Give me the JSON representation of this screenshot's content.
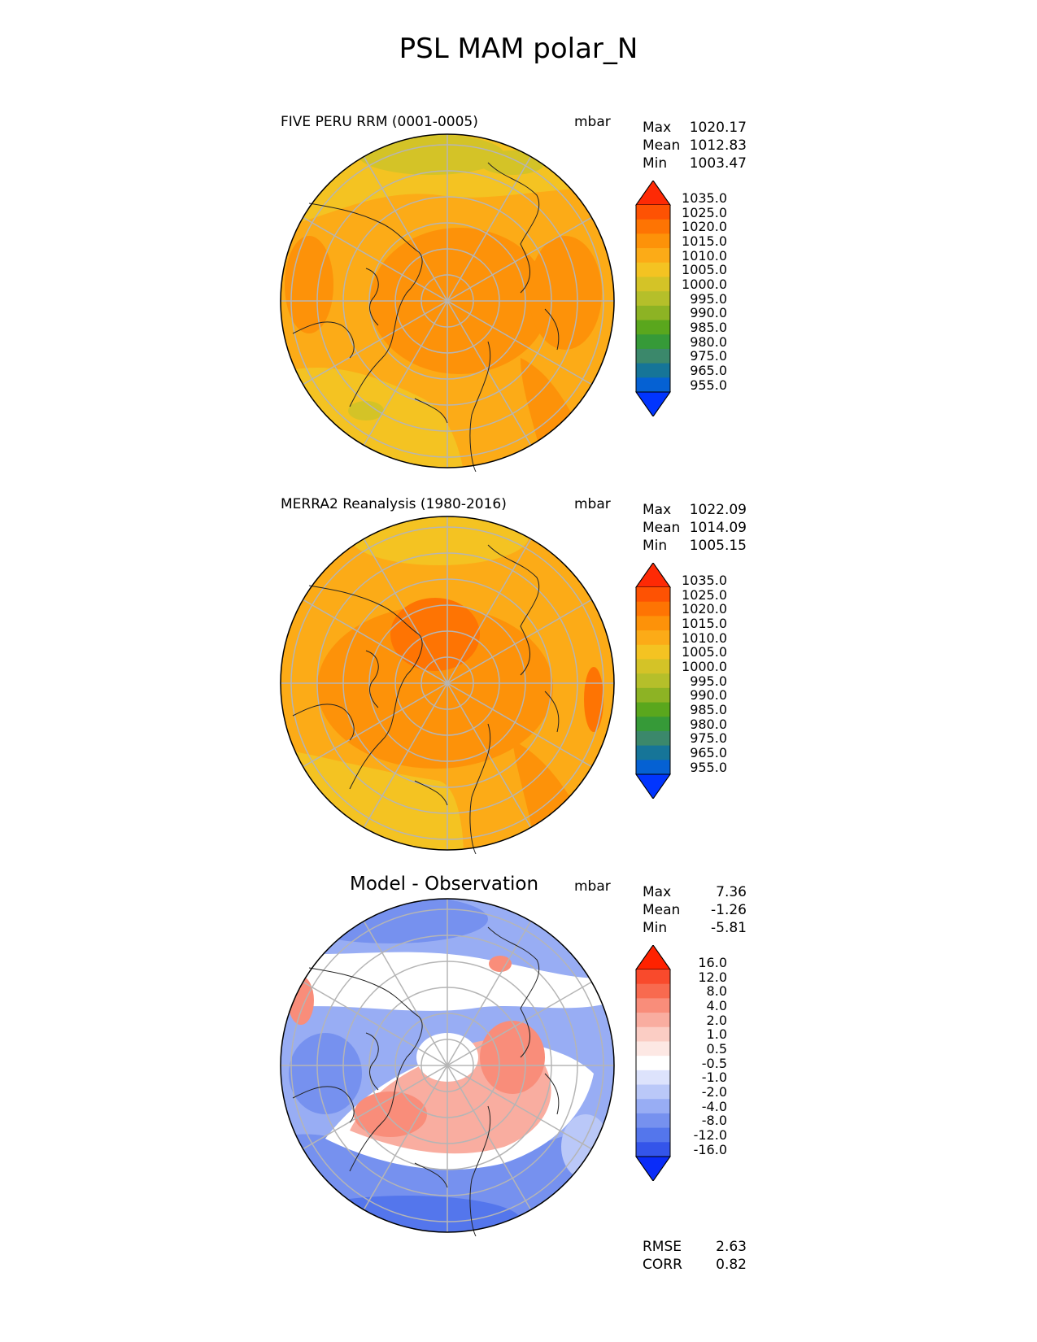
{
  "figure": {
    "title": "PSL MAM polar_N"
  },
  "chart_data": [
    {
      "type": "map",
      "projection": "north-polar-stereographic",
      "title": "FIVE PERU RRM (0001-0005)",
      "units": "mbar",
      "stats": {
        "max_label": "Max",
        "max": "1020.17",
        "mean_label": "Mean",
        "mean": "1012.83",
        "min_label": "Min",
        "min": "1003.47"
      },
      "colorbar_levels": [
        "1035.0",
        "1025.0",
        "1020.0",
        "1015.0",
        "1010.0",
        "1005.0",
        "1000.0",
        "995.0",
        "990.0",
        "985.0",
        "980.0",
        "975.0",
        "965.0",
        "955.0"
      ],
      "colors": [
        "#fe2a05",
        "#fe5203",
        "#fe7403",
        "#fd9209",
        "#fcab17",
        "#f4c322",
        "#d4c327",
        "#b5bf2a",
        "#8db324",
        "#5aa71d",
        "#369a38",
        "#3b886b",
        "#167598",
        "#0561d3",
        "#0135fe"
      ]
    },
    {
      "type": "map",
      "projection": "north-polar-stereographic",
      "title": "MERRA2 Reanalysis (1980-2016)",
      "units": "mbar",
      "stats": {
        "max_label": "Max",
        "max": "1022.09",
        "mean_label": "Mean",
        "mean": "1014.09",
        "min_label": "Min",
        "min": "1005.15"
      },
      "colorbar_levels": [
        "1035.0",
        "1025.0",
        "1020.0",
        "1015.0",
        "1010.0",
        "1005.0",
        "1000.0",
        "995.0",
        "990.0",
        "985.0",
        "980.0",
        "975.0",
        "965.0",
        "955.0"
      ],
      "colors": [
        "#fe2a05",
        "#fe5203",
        "#fe7403",
        "#fd9209",
        "#fcab17",
        "#f4c322",
        "#d4c327",
        "#b5bf2a",
        "#8db324",
        "#5aa71d",
        "#369a38",
        "#3b886b",
        "#167598",
        "#0561d3",
        "#0135fe"
      ]
    },
    {
      "type": "map",
      "projection": "north-polar-stereographic",
      "title": "Model - Observation",
      "units": "mbar",
      "stats": {
        "max_label": "Max",
        "max": "7.36",
        "mean_label": "Mean",
        "mean": "-1.26",
        "min_label": "Min",
        "min": "-5.81"
      },
      "colorbar_levels": [
        "16.0",
        "12.0",
        "8.0",
        "4.0",
        "2.0",
        "1.0",
        "0.5",
        "-0.5",
        "-1.0",
        "-2.0",
        "-4.0",
        "-8.0",
        "-12.0",
        "-16.0"
      ],
      "colors": [
        "#ff2200",
        "#f94a2c",
        "#f86a4f",
        "#f98d7a",
        "#f9ada0",
        "#fbcdc4",
        "#fde8e4",
        "#ffffff",
        "#dde3fc",
        "#bac8f8",
        "#98adf4",
        "#7691ef",
        "#5476ec",
        "#3455ea",
        "#0a2cf8"
      ],
      "rmse_label": "RMSE",
      "rmse": "2.63",
      "corr_label": "CORR",
      "corr": "0.82"
    }
  ]
}
